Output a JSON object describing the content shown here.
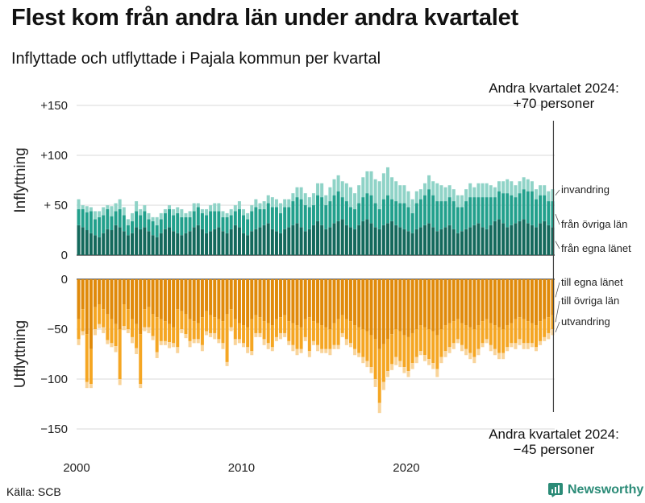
{
  "header": {
    "title": "Flest kom från andra län under andra kvartalet",
    "subtitle": "Inflyttade och utflyttade i Pajala kommun per kvartal"
  },
  "footer": {
    "source": "Källa: SCB",
    "brand": "Newsworthy"
  },
  "colors": {
    "in_own": "#14695c",
    "in_other": "#22a08c",
    "in_immig": "#8fd3c7",
    "out_own": "#e08a0a",
    "out_other": "#f5a623",
    "out_emig": "#f9d49a",
    "grid": "#d9d9d9",
    "axis": "#333333",
    "brand": "#2b8b77"
  },
  "chart_data": {
    "type": "bar",
    "x_start": "2000 Q1",
    "x_ticks": [
      "2000",
      "2010",
      "2020"
    ],
    "panels": [
      {
        "ylabel": "Inflyttning",
        "ylim": [
          0,
          150
        ],
        "yticks": [
          {
            "value": 150,
            "label": "+150"
          },
          {
            "value": 100,
            "label": "+100"
          },
          {
            "value": 50,
            "label": "+ 50"
          },
          {
            "value": 0,
            "label": "0"
          }
        ],
        "series": [
          {
            "name": "från egna länet",
            "values": [
              30,
              28,
              25,
              22,
              20,
              18,
              22,
              26,
              25,
              30,
              28,
              24,
              20,
              22,
              28,
              26,
              28,
              24,
              20,
              18,
              22,
              26,
              28,
              24,
              22,
              20,
              22,
              24,
              28,
              30,
              26,
              22,
              24,
              26,
              28,
              24,
              22,
              26,
              30,
              28,
              22,
              20,
              24,
              26,
              28,
              30,
              32,
              26,
              24,
              22,
              26,
              28,
              30,
              32,
              28,
              24,
              26,
              30,
              34,
              30,
              26,
              28,
              32,
              34,
              36,
              30,
              28,
              26,
              30,
              34,
              36,
              32,
              28,
              26,
              30,
              32,
              34,
              30,
              28,
              26,
              24,
              22,
              26,
              28,
              30,
              32,
              28,
              24,
              26,
              28,
              30,
              26,
              22,
              24,
              26,
              28,
              30,
              32,
              28,
              26,
              30,
              34,
              36,
              32,
              28,
              30,
              32,
              34,
              36,
              32,
              30,
              28,
              32,
              34,
              30,
              28
            ]
          },
          {
            "name": "från övriga län",
            "values": [
              16,
              18,
              18,
              22,
              16,
              20,
              18,
              20,
              14,
              14,
              18,
              16,
              10,
              12,
              16,
              14,
              16,
              12,
              14,
              12,
              14,
              16,
              18,
              16,
              20,
              18,
              16,
              14,
              16,
              18,
              16,
              18,
              20,
              18,
              16,
              14,
              16,
              14,
              14,
              18,
              18,
              16,
              20,
              22,
              18,
              16,
              20,
              22,
              24,
              20,
              22,
              20,
              24,
              26,
              28,
              26,
              22,
              20,
              26,
              28,
              24,
              26,
              28,
              30,
              22,
              24,
              20,
              20,
              22,
              24,
              26,
              28,
              24,
              20,
              26,
              28,
              22,
              24,
              24,
              26,
              24,
              20,
              26,
              28,
              30,
              34,
              32,
              30,
              28,
              26,
              28,
              28,
              26,
              24,
              28,
              30,
              28,
              26,
              30,
              32,
              28,
              24,
              28,
              30,
              34,
              30,
              26,
              28,
              30,
              32,
              34,
              28,
              28,
              26,
              24,
              26
            ]
          },
          {
            "name": "invandring",
            "values": [
              10,
              4,
              6,
              4,
              8,
              6,
              8,
              4,
              10,
              8,
              10,
              8,
              6,
              8,
              10,
              6,
              6,
              6,
              4,
              8,
              6,
              4,
              4,
              6,
              6,
              8,
              4,
              6,
              8,
              4,
              4,
              6,
              6,
              8,
              8,
              6,
              4,
              6,
              6,
              8,
              6,
              6,
              6,
              8,
              6,
              8,
              8,
              10,
              8,
              10,
              8,
              8,
              8,
              10,
              12,
              12,
              10,
              12,
              12,
              14,
              10,
              14,
              16,
              16,
              16,
              18,
              20,
              16,
              18,
              20,
              22,
              24,
              24,
              28,
              26,
              28,
              22,
              20,
              18,
              18,
              16,
              14,
              12,
              10,
              12,
              14,
              14,
              18,
              16,
              14,
              12,
              12,
              12,
              12,
              12,
              14,
              10,
              14,
              14,
              14,
              12,
              10,
              10,
              12,
              14,
              14,
              12,
              12,
              12,
              12,
              10,
              10,
              10,
              10,
              10,
              12
            ]
          }
        ]
      },
      {
        "ylabel": "Utflyttning",
        "ylim": [
          -150,
          0
        ],
        "yticks": [
          {
            "value": 0,
            "label": "0"
          },
          {
            "value": -50,
            "label": "−50"
          },
          {
            "value": -100,
            "label": "−100"
          },
          {
            "value": -150,
            "label": "−150"
          }
        ],
        "series": [
          {
            "name": "till egna länet",
            "values": [
              -40,
              -30,
              -55,
              -70,
              -28,
              -25,
              -30,
              -35,
              -40,
              -45,
              -50,
              -25,
              -30,
              -40,
              -45,
              -55,
              -30,
              -28,
              -35,
              -38,
              -40,
              -42,
              -45,
              -48,
              -30,
              -32,
              -35,
              -40,
              -42,
              -44,
              -38,
              -32,
              -36,
              -38,
              -40,
              -42,
              -35,
              -30,
              -40,
              -44,
              -46,
              -48,
              -40,
              -36,
              -38,
              -42,
              -44,
              -46,
              -40,
              -38,
              -36,
              -42,
              -44,
              -46,
              -48,
              -40,
              -38,
              -42,
              -44,
              -46,
              -48,
              -50,
              -44,
              -40,
              -36,
              -40,
              -42,
              -46,
              -48,
              -50,
              -52,
              -56,
              -60,
              -70,
              -65,
              -60,
              -55,
              -50,
              -52,
              -56,
              -58,
              -54,
              -50,
              -46,
              -48,
              -50,
              -52,
              -56,
              -50,
              -46,
              -44,
              -42,
              -40,
              -44,
              -46,
              -48,
              -50,
              -46,
              -42,
              -40,
              -44,
              -46,
              -48,
              -50,
              -46,
              -44,
              -40,
              -38,
              -40,
              -42,
              -44,
              -46,
              -42,
              -40,
              -38,
              -36
            ]
          },
          {
            "name": "till övriga län",
            "values": [
              -20,
              -22,
              -48,
              -35,
              -22,
              -20,
              -18,
              -26,
              -24,
              -22,
              -50,
              -22,
              -20,
              -18,
              -24,
              -50,
              -18,
              -20,
              -22,
              -35,
              -22,
              -20,
              -18,
              -16,
              -38,
              -18,
              -20,
              -22,
              -18,
              -16,
              -28,
              -20,
              -18,
              -16,
              -20,
              -22,
              -48,
              -18,
              -20,
              -16,
              -18,
              -20,
              -32,
              -18,
              -16,
              -18,
              -20,
              -22,
              -18,
              -16,
              -18,
              -20,
              -22,
              -24,
              -22,
              -18,
              -34,
              -20,
              -22,
              -24,
              -22,
              -20,
              -22,
              -26,
              -18,
              -20,
              -22,
              -24,
              -26,
              -28,
              -30,
              -32,
              -40,
              -54,
              -38,
              -32,
              -30,
              -28,
              -30,
              -32,
              -34,
              -30,
              -28,
              -26,
              -28,
              -30,
              -32,
              -34,
              -28,
              -26,
              -24,
              -22,
              -20,
              -22,
              -24,
              -26,
              -28,
              -24,
              -22,
              -20,
              -22,
              -24,
              -26,
              -24,
              -22,
              -20,
              -24,
              -22,
              -24,
              -22,
              -20,
              -22,
              -20,
              -18,
              -16,
              -14
            ]
          },
          {
            "name": "utvandring",
            "values": [
              -6,
              -4,
              -6,
              -4,
              -6,
              -4,
              -6,
              -4,
              -4,
              -6,
              -6,
              -4,
              -4,
              -6,
              -6,
              -4,
              -4,
              -6,
              -4,
              -6,
              -4,
              -4,
              -6,
              -4,
              -6,
              -4,
              -4,
              -6,
              -4,
              -4,
              -6,
              -4,
              -4,
              -6,
              -4,
              -6,
              -4,
              -4,
              -6,
              -4,
              -4,
              -6,
              -4,
              -4,
              -4,
              -6,
              -6,
              -4,
              -4,
              -6,
              -4,
              -4,
              -6,
              -6,
              -4,
              -4,
              -6,
              -4,
              -6,
              -4,
              -4,
              -6,
              -4,
              -4,
              -4,
              -6,
              -4,
              -6,
              -4,
              -6,
              -6,
              -6,
              -8,
              -10,
              -8,
              -6,
              -6,
              -8,
              -6,
              -6,
              -6,
              -6,
              -6,
              -4,
              -6,
              -6,
              -6,
              -8,
              -6,
              -6,
              -6,
              -6,
              -4,
              -6,
              -6,
              -6,
              -6,
              -6,
              -4,
              -4,
              -6,
              -6,
              -6,
              -6,
              -4,
              -4,
              -6,
              -6,
              -6,
              -6,
              -4,
              -4,
              -4,
              -4,
              -6,
              -6
            ]
          }
        ]
      }
    ],
    "annotations": [
      {
        "panel": 0,
        "lines": [
          "Andra kvartalet 2024:",
          "+70 personer"
        ],
        "position": "top-right"
      },
      {
        "panel": 1,
        "lines": [
          "Andra kvartalet 2024:",
          "−45 personer"
        ],
        "position": "bottom-right"
      }
    ],
    "legend": "right, inline end labels",
    "grid": true
  }
}
